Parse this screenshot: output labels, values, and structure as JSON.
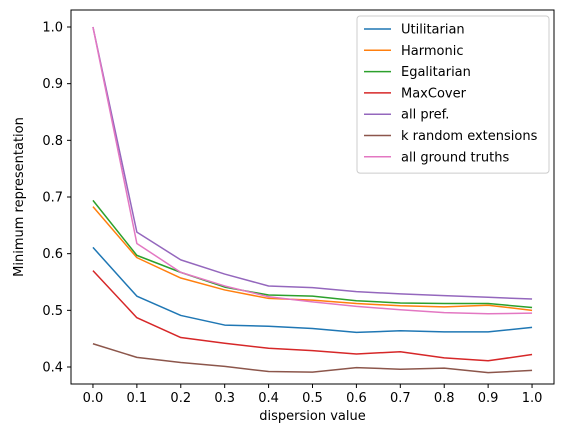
{
  "chart_data": {
    "type": "line",
    "title": "",
    "xlabel": "dispersion value",
    "ylabel": "Minimum representation",
    "x": [
      0.0,
      0.1,
      0.2,
      0.3,
      0.4,
      0.5,
      0.6,
      0.7,
      0.8,
      0.9,
      1.0
    ],
    "x_ticks": [
      "0.0",
      "0.1",
      "0.2",
      "0.3",
      "0.4",
      "0.5",
      "0.6",
      "0.7",
      "0.8",
      "0.9",
      "1.0"
    ],
    "y_ticks": [
      "0.4",
      "0.5",
      "0.6",
      "0.7",
      "0.8",
      "0.9",
      "1.0"
    ],
    "xlim": [
      -0.05,
      1.05
    ],
    "ylim": [
      0.37,
      1.03
    ],
    "grid": false,
    "legend_position": "top-right",
    "series": [
      {
        "name": "Utilitarian",
        "color": "#1f77b4",
        "values": [
          0.611,
          0.525,
          0.491,
          0.474,
          0.472,
          0.468,
          0.461,
          0.464,
          0.462,
          0.462,
          0.47
        ]
      },
      {
        "name": "Harmonic",
        "color": "#ff7f0e",
        "values": [
          0.683,
          0.593,
          0.557,
          0.536,
          0.521,
          0.518,
          0.512,
          0.508,
          0.506,
          0.509,
          0.5
        ]
      },
      {
        "name": "Egalitarian",
        "color": "#2ca02c",
        "values": [
          0.694,
          0.597,
          0.567,
          0.541,
          0.527,
          0.525,
          0.517,
          0.513,
          0.512,
          0.512,
          0.505
        ]
      },
      {
        "name": "MaxCover",
        "color": "#d62728",
        "values": [
          0.57,
          0.487,
          0.452,
          0.442,
          0.433,
          0.429,
          0.423,
          0.427,
          0.416,
          0.411,
          0.422
        ]
      },
      {
        "name": "all pref.",
        "color": "#9467bd",
        "values": [
          1.0,
          0.638,
          0.589,
          0.564,
          0.543,
          0.54,
          0.533,
          0.529,
          0.526,
          0.523,
          0.52
        ]
      },
      {
        "name": "k random extensions",
        "color": "#8c564b",
        "values": [
          0.441,
          0.417,
          0.408,
          0.401,
          0.392,
          0.391,
          0.399,
          0.396,
          0.398,
          0.39,
          0.394
        ]
      },
      {
        "name": "all ground truths",
        "color": "#e377c2",
        "values": [
          1.0,
          0.618,
          0.567,
          0.543,
          0.524,
          0.515,
          0.507,
          0.501,
          0.496,
          0.494,
          0.495
        ]
      }
    ]
  }
}
